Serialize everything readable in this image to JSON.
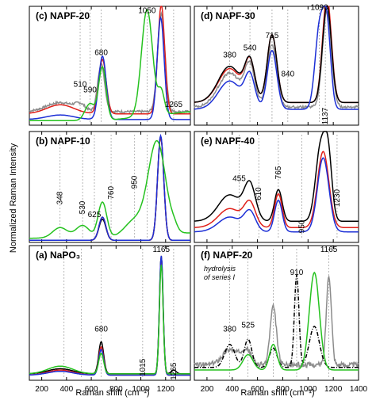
{
  "chart_data": {
    "type": "line",
    "ylabel": "Normalized Raman Intensity",
    "xlabel": "Raman shift (cm⁻¹)",
    "colors": {
      "black": "#000000",
      "red": "#e0201a",
      "blue": "#1c2fd6",
      "green": "#25c21f",
      "gray": "#8c8c8c"
    },
    "panels": [
      {
        "id": "c",
        "title": "(c) NAPF-20",
        "col": 0,
        "row": 0,
        "xlim": [
          100,
          1400
        ],
        "ylim": [
          0,
          1.05
        ],
        "annotations": [
          {
            "text": "1050",
            "x": 1050,
            "y": 0.99
          },
          {
            "text": "680",
            "x": 680,
            "y": 0.62
          },
          {
            "text": "510",
            "x": 510,
            "y": 0.34
          },
          {
            "text": "590",
            "x": 590,
            "y": 0.29
          },
          {
            "text": "1265",
            "x": 1265,
            "y": 0.16
          }
        ],
        "dashes": [
          510,
          590,
          680,
          1050,
          1265
        ],
        "series": [
          {
            "color": "gray",
            "peaks": [
              [
                1165,
                0.86,
                30
              ],
              [
                680,
                0.42,
                28
              ],
              [
                350,
                0.08,
                110
              ],
              [
                510,
                0.05,
                40
              ]
            ],
            "base": 0.12,
            "noise": 0.02
          },
          {
            "color": "red",
            "peaks": [
              [
                1165,
                0.96,
                28
              ],
              [
                690,
                0.48,
                30
              ],
              [
                350,
                0.08,
                110
              ]
            ],
            "base": 0.1
          },
          {
            "color": "blue",
            "peaks": [
              [
                1160,
                0.9,
                28
              ],
              [
                690,
                0.56,
                30
              ],
              [
                350,
                0.04,
                110
              ]
            ],
            "base": 0.05
          },
          {
            "color": "green",
            "peaks": [
              [
                1050,
                0.94,
                45
              ],
              [
                690,
                0.47,
                30
              ],
              [
                1165,
                0.2,
                25
              ],
              [
                590,
                0.15,
                40
              ]
            ],
            "base": 0.04,
            "bg": 0.08
          }
        ]
      },
      {
        "id": "d",
        "title": "(d) NAPF-30",
        "col": 1,
        "row": 0,
        "xlim": [
          100,
          1400
        ],
        "ylim": [
          0,
          1.05
        ],
        "annotations": [
          {
            "text": "1090",
            "x": 1090,
            "y": 1.02
          },
          {
            "text": "715",
            "x": 715,
            "y": 0.77
          },
          {
            "text": "380",
            "x": 380,
            "y": 0.6
          },
          {
            "text": "540",
            "x": 540,
            "y": 0.66
          },
          {
            "text": "840",
            "x": 840,
            "y": 0.43
          },
          {
            "text": "1137",
            "x": 1137,
            "y": 0.08,
            "rot": true
          }
        ],
        "dashes": [
          380,
          540,
          715,
          840,
          1090,
          1137
        ],
        "series": [
          {
            "color": "gray",
            "peaks": [
              [
                1150,
                0.85,
                35
              ],
              [
                715,
                0.55,
                38
              ],
              [
                540,
                0.34,
                40
              ],
              [
                380,
                0.3,
                90
              ]
            ],
            "base": 0.16,
            "noise": 0.02
          },
          {
            "color": "red",
            "peaks": [
              [
                1150,
                0.93,
                35
              ],
              [
                715,
                0.6,
                38
              ],
              [
                540,
                0.34,
                40
              ],
              [
                380,
                0.3,
                90
              ]
            ],
            "base": 0.2
          },
          {
            "color": "black",
            "peaks": [
              [
                1150,
                0.86,
                35
              ],
              [
                715,
                0.6,
                38
              ],
              [
                540,
                0.34,
                40
              ],
              [
                380,
                0.32,
                90
              ]
            ],
            "base": 0.2
          },
          {
            "color": "blue",
            "peaks": [
              [
                1090,
                0.7,
                35
              ],
              [
                1150,
                0.7,
                30
              ],
              [
                715,
                0.52,
                38
              ],
              [
                540,
                0.28,
                40
              ],
              [
                380,
                0.25,
                90
              ]
            ],
            "base": 0.14
          }
        ]
      },
      {
        "id": "b",
        "title": "(b) NAPF-10",
        "col": 0,
        "row": 1,
        "xlim": [
          100,
          1400
        ],
        "ylim": [
          0,
          1.05
        ],
        "annotations": [
          {
            "text": "348",
            "x": 348,
            "y": 0.42,
            "rot": true
          },
          {
            "text": "530",
            "x": 530,
            "y": 0.33,
            "rot": true
          },
          {
            "text": "625",
            "x": 625,
            "y": 0.24
          },
          {
            "text": "760",
            "x": 760,
            "y": 0.47,
            "rot": true
          },
          {
            "text": "950",
            "x": 950,
            "y": 0.57,
            "rot": true
          }
        ],
        "dashes": [
          348,
          530,
          625,
          760,
          950,
          1050
        ],
        "series": [
          {
            "color": "black",
            "peaks": [
              [
                1160,
                0.98,
                25
              ],
              [
                690,
                0.2,
                28
              ]
            ],
            "base": 0.02
          },
          {
            "color": "red",
            "peaks": [
              [
                1160,
                0.98,
                25
              ],
              [
                690,
                0.22,
                28
              ]
            ],
            "base": 0.02
          },
          {
            "color": "blue",
            "peaks": [
              [
                1160,
                0.99,
                25
              ],
              [
                690,
                0.22,
                28
              ]
            ],
            "base": 0.02
          },
          {
            "color": "green",
            "peaks": [
              [
                1130,
                0.88,
                70
              ],
              [
                690,
                0.34,
                35
              ],
              [
                348,
                0.1,
                60
              ],
              [
                530,
                0.12,
                55
              ],
              [
                950,
                0.15,
                80
              ],
              [
                1270,
                0.04,
                25
              ]
            ],
            "base": 0.04,
            "bg": 0.05
          }
        ]
      },
      {
        "id": "e",
        "title": "(e) NAPF-40",
        "col": 1,
        "row": 1,
        "xlim": [
          100,
          1400
        ],
        "ylim": [
          0,
          1.05
        ],
        "annotations": [
          {
            "text": "455",
            "x": 455,
            "y": 0.58
          },
          {
            "text": "610",
            "x": 610,
            "y": 0.46,
            "rot": true
          },
          {
            "text": "765",
            "x": 765,
            "y": 0.66,
            "rot": true
          },
          {
            "text": "950",
            "x": 950,
            "y": 0.15,
            "rot": true
          },
          {
            "text": "1230",
            "x": 1230,
            "y": 0.42,
            "rot": true
          }
        ],
        "dashes": [
          455,
          610,
          765,
          950,
          1230
        ],
        "series": [
          {
            "color": "black",
            "peaks": [
              [
                1100,
                0.7,
                40
              ],
              [
                1160,
                0.55,
                30
              ],
              [
                765,
                0.3,
                30
              ],
              [
                540,
                0.33,
                45
              ],
              [
                380,
                0.25,
                90
              ]
            ],
            "base": 0.2
          },
          {
            "color": "red",
            "peaks": [
              [
                1120,
                0.72,
                45
              ],
              [
                765,
                0.32,
                30
              ],
              [
                540,
                0.22,
                45
              ],
              [
                380,
                0.18,
                90
              ]
            ],
            "base": 0.14
          },
          {
            "color": "blue",
            "peaks": [
              [
                1120,
                0.7,
                45
              ],
              [
                765,
                0.3,
                30
              ],
              [
                540,
                0.18,
                45
              ],
              [
                380,
                0.14,
                90
              ]
            ],
            "base": 0.1
          }
        ]
      },
      {
        "id": "a",
        "title": "(a) NaPO₃",
        "col": 0,
        "row": 2,
        "xlim": [
          100,
          1400
        ],
        "ylim": [
          0,
          1.05
        ],
        "annotations": [
          {
            "text": "1165",
            "x": 1165,
            "y": 1.0
          },
          {
            "text": "680",
            "x": 680,
            "y": 0.38
          },
          {
            "text": "1015",
            "x": 1015,
            "y": 0.1,
            "rot": true
          },
          {
            "text": "1265",
            "x": 1265,
            "y": 0.07,
            "rot": true
          }
        ],
        "dashes": [
          380,
          520,
          680,
          1015,
          1265
        ],
        "series": [
          {
            "color": "black",
            "peaks": [
              [
                1165,
                0.92,
                15
              ],
              [
                680,
                0.25,
                20
              ],
              [
                350,
                0.04,
                100
              ],
              [
                1265,
                0.03,
                20
              ]
            ],
            "base": 0.05
          },
          {
            "color": "red",
            "peaks": [
              [
                1165,
                0.9,
                15
              ],
              [
                680,
                0.22,
                20
              ],
              [
                350,
                0.04,
                100
              ]
            ],
            "base": 0.04
          },
          {
            "color": "blue",
            "peaks": [
              [
                1165,
                0.93,
                15
              ],
              [
                680,
                0.2,
                20
              ],
              [
                350,
                0.03,
                100
              ]
            ],
            "base": 0.04
          },
          {
            "color": "green",
            "peaks": [
              [
                1165,
                0.85,
                15
              ],
              [
                680,
                0.16,
                20
              ],
              [
                350,
                0.06,
                100
              ]
            ],
            "base": 0.05
          }
        ]
      },
      {
        "id": "f",
        "title": "(f) NAPF-20",
        "subtitle": [
          "hydrolysis",
          "of series I"
        ],
        "col": 1,
        "row": 2,
        "xlim": [
          100,
          1400
        ],
        "ylim": [
          0,
          1.05
        ],
        "annotations": [
          {
            "text": "1165",
            "x": 1165,
            "y": 1.0
          },
          {
            "text": "910",
            "x": 910,
            "y": 0.82
          },
          {
            "text": "380",
            "x": 380,
            "y": 0.38
          },
          {
            "text": "525",
            "x": 525,
            "y": 0.41
          }
        ],
        "dashes": [
          380,
          525,
          725,
          910,
          1165
        ],
        "series": [
          {
            "color": "gray",
            "peaks": [
              [
                1165,
                0.7,
                20
              ],
              [
                725,
                0.45,
                25
              ],
              [
                510,
                0.12,
                40
              ],
              [
                380,
                0.12,
                60
              ]
            ],
            "base": 0.12,
            "noise": 0.04
          },
          {
            "color": "black",
            "dashed": true,
            "peaks": [
              [
                910,
                0.72,
                18
              ],
              [
                1050,
                0.32,
                40
              ],
              [
                525,
                0.22,
                30
              ],
              [
                380,
                0.18,
                40
              ],
              [
                725,
                0.15,
                30
              ]
            ],
            "base": 0.1
          },
          {
            "color": "green",
            "peaks": [
              [
                1050,
                0.76,
                40
              ],
              [
                725,
                0.2,
                30
              ],
              [
                525,
                0.12,
                40
              ]
            ],
            "base": 0.08
          }
        ]
      }
    ],
    "xticks_left": [
      200,
      400,
      600,
      800,
      1000,
      1200
    ],
    "xticks_right": [
      200,
      400,
      600,
      800,
      1000,
      1200,
      1400
    ]
  }
}
